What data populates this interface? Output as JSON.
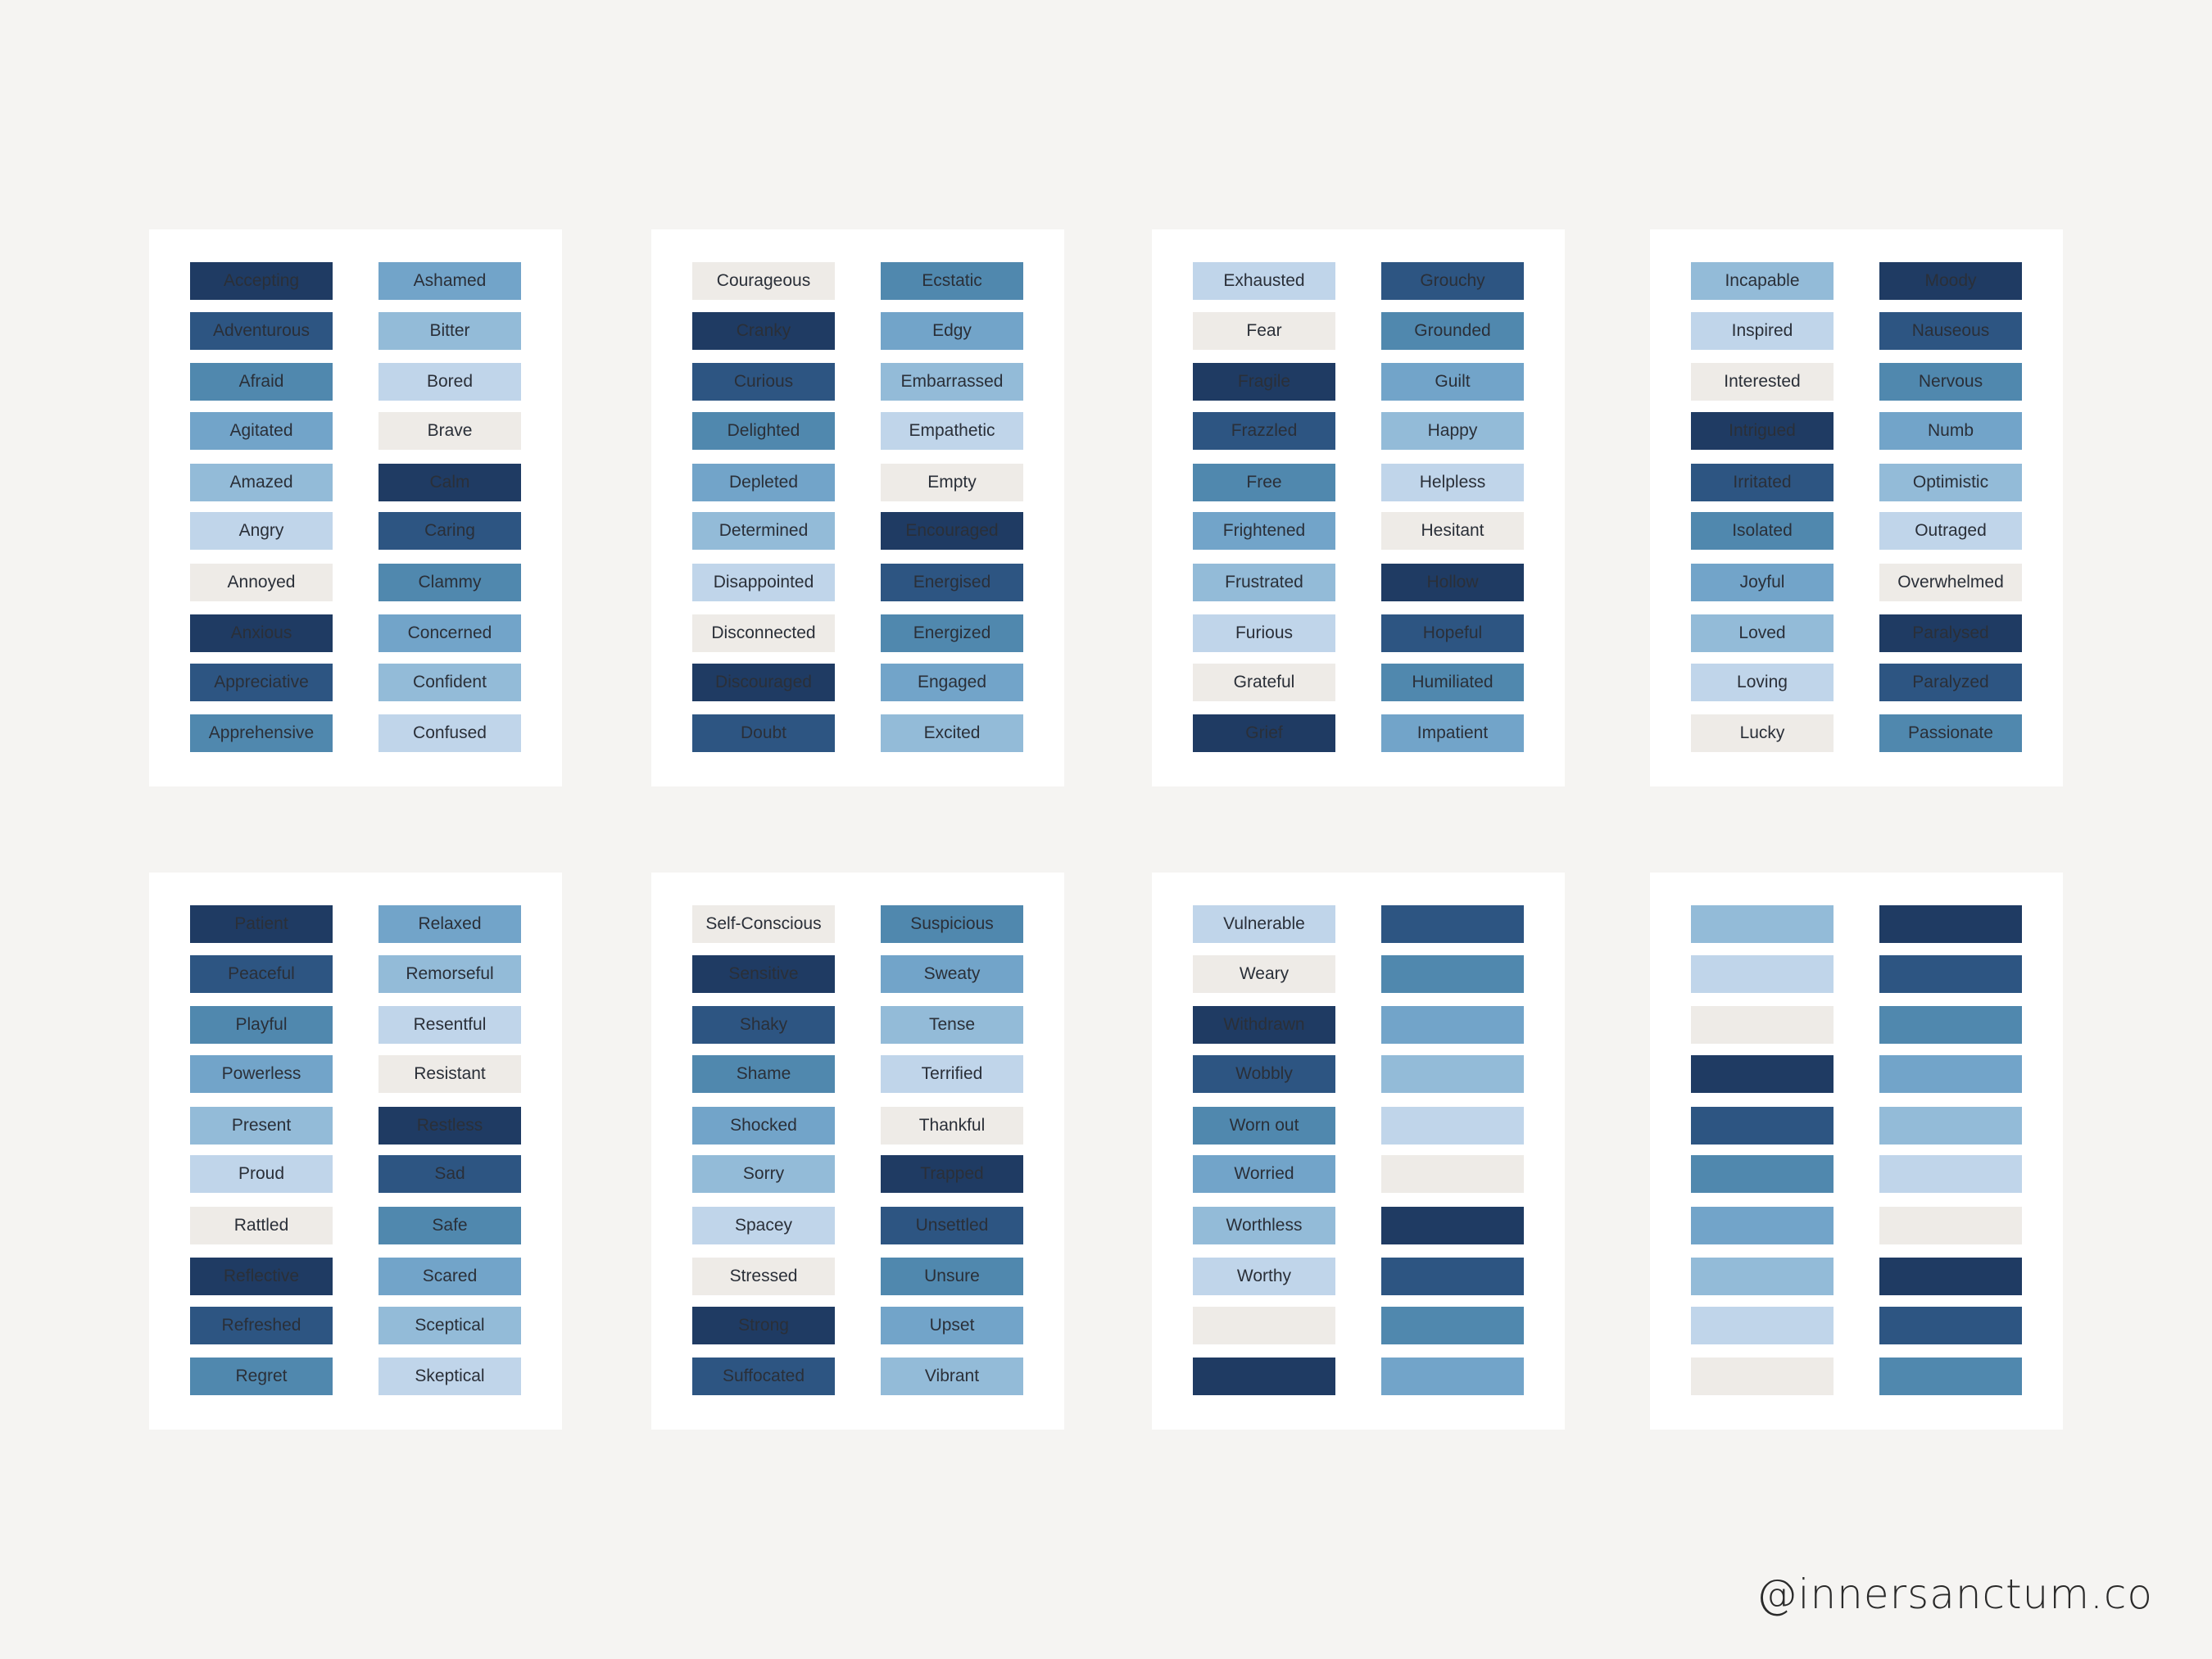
{
  "colors": {
    "c1": "#1f3b63",
    "c2": "#2d5582",
    "c3": "#5088ae",
    "c4": "#72a4c9",
    "c5": "#93bbd8",
    "c6": "#c0d5ea",
    "c7": "#eeebe7"
  },
  "watermark": "@innersanctum.co",
  "cards": [
    {
      "left": [
        {
          "label": "Accepting",
          "color": "c1"
        },
        {
          "label": "Adventurous",
          "color": "c2"
        },
        {
          "label": "Afraid",
          "color": "c3"
        },
        {
          "label": "Agitated",
          "color": "c4"
        },
        {
          "label": "Amazed",
          "color": "c5"
        },
        {
          "label": "Angry",
          "color": "c6"
        },
        {
          "label": "Annoyed",
          "color": "c7"
        },
        {
          "label": "Anxious",
          "color": "c1"
        },
        {
          "label": "Appreciative",
          "color": "c2"
        },
        {
          "label": "Apprehensive",
          "color": "c3"
        }
      ],
      "right": [
        {
          "label": "Ashamed",
          "color": "c4"
        },
        {
          "label": "Bitter",
          "color": "c5"
        },
        {
          "label": "Bored",
          "color": "c6"
        },
        {
          "label": "Brave",
          "color": "c7"
        },
        {
          "label": "Calm",
          "color": "c1"
        },
        {
          "label": "Caring",
          "color": "c2"
        },
        {
          "label": "Clammy",
          "color": "c3"
        },
        {
          "label": "Concerned",
          "color": "c4"
        },
        {
          "label": "Confident",
          "color": "c5"
        },
        {
          "label": "Confused",
          "color": "c6"
        }
      ]
    },
    {
      "left": [
        {
          "label": "Courageous",
          "color": "c7"
        },
        {
          "label": "Cranky",
          "color": "c1"
        },
        {
          "label": "Curious",
          "color": "c2"
        },
        {
          "label": "Delighted",
          "color": "c3"
        },
        {
          "label": "Depleted",
          "color": "c4"
        },
        {
          "label": "Determined",
          "color": "c5"
        },
        {
          "label": "Disappointed",
          "color": "c6"
        },
        {
          "label": "Disconnected",
          "color": "c7"
        },
        {
          "label": "Discouraged",
          "color": "c1"
        },
        {
          "label": "Doubt",
          "color": "c2"
        }
      ],
      "right": [
        {
          "label": "Ecstatic",
          "color": "c3"
        },
        {
          "label": "Edgy",
          "color": "c4"
        },
        {
          "label": "Embarrassed",
          "color": "c5"
        },
        {
          "label": "Empathetic",
          "color": "c6"
        },
        {
          "label": "Empty",
          "color": "c7"
        },
        {
          "label": "Encouraged",
          "color": "c1"
        },
        {
          "label": "Energised",
          "color": "c2"
        },
        {
          "label": "Energized",
          "color": "c3"
        },
        {
          "label": "Engaged",
          "color": "c4"
        },
        {
          "label": "Excited",
          "color": "c5"
        }
      ]
    },
    {
      "left": [
        {
          "label": "Exhausted",
          "color": "c6"
        },
        {
          "label": "Fear",
          "color": "c7"
        },
        {
          "label": "Fragile",
          "color": "c1"
        },
        {
          "label": "Frazzled",
          "color": "c2"
        },
        {
          "label": "Free",
          "color": "c3"
        },
        {
          "label": "Frightened",
          "color": "c4"
        },
        {
          "label": "Frustrated",
          "color": "c5"
        },
        {
          "label": "Furious",
          "color": "c6"
        },
        {
          "label": "Grateful",
          "color": "c7"
        },
        {
          "label": "Grief",
          "color": "c1"
        }
      ],
      "right": [
        {
          "label": "Grouchy",
          "color": "c2"
        },
        {
          "label": "Grounded",
          "color": "c3"
        },
        {
          "label": "Guilt",
          "color": "c4"
        },
        {
          "label": "Happy",
          "color": "c5"
        },
        {
          "label": "Helpless",
          "color": "c6"
        },
        {
          "label": "Hesitant",
          "color": "c7"
        },
        {
          "label": "Hollow",
          "color": "c1"
        },
        {
          "label": "Hopeful",
          "color": "c2"
        },
        {
          "label": "Humiliated",
          "color": "c3"
        },
        {
          "label": "Impatient",
          "color": "c4"
        }
      ]
    },
    {
      "left": [
        {
          "label": "Incapable",
          "color": "c5"
        },
        {
          "label": "Inspired",
          "color": "c6"
        },
        {
          "label": "Interested",
          "color": "c7"
        },
        {
          "label": "Intrigued",
          "color": "c1"
        },
        {
          "label": "Irritated",
          "color": "c2"
        },
        {
          "label": "Isolated",
          "color": "c3"
        },
        {
          "label": "Joyful",
          "color": "c4"
        },
        {
          "label": "Loved",
          "color": "c5"
        },
        {
          "label": "Loving",
          "color": "c6"
        },
        {
          "label": "Lucky",
          "color": "c7"
        }
      ],
      "right": [
        {
          "label": "Moody",
          "color": "c1"
        },
        {
          "label": "Nauseous",
          "color": "c2"
        },
        {
          "label": "Nervous",
          "color": "c3"
        },
        {
          "label": "Numb",
          "color": "c4"
        },
        {
          "label": "Optimistic",
          "color": "c5"
        },
        {
          "label": "Outraged",
          "color": "c6"
        },
        {
          "label": "Overwhelmed",
          "color": "c7"
        },
        {
          "label": "Paralysed",
          "color": "c1"
        },
        {
          "label": "Paralyzed",
          "color": "c2"
        },
        {
          "label": "Passionate",
          "color": "c3"
        }
      ]
    },
    {
      "left": [
        {
          "label": "Patient",
          "color": "c1"
        },
        {
          "label": "Peaceful",
          "color": "c2"
        },
        {
          "label": "Playful",
          "color": "c3"
        },
        {
          "label": "Powerless",
          "color": "c4"
        },
        {
          "label": "Present",
          "color": "c5"
        },
        {
          "label": "Proud",
          "color": "c6"
        },
        {
          "label": "Rattled",
          "color": "c7"
        },
        {
          "label": "Reflective",
          "color": "c1"
        },
        {
          "label": "Refreshed",
          "color": "c2"
        },
        {
          "label": "Regret",
          "color": "c3"
        }
      ],
      "right": [
        {
          "label": "Relaxed",
          "color": "c4"
        },
        {
          "label": "Remorseful",
          "color": "c5"
        },
        {
          "label": "Resentful",
          "color": "c6"
        },
        {
          "label": "Resistant",
          "color": "c7"
        },
        {
          "label": "Restless",
          "color": "c1"
        },
        {
          "label": "Sad",
          "color": "c2"
        },
        {
          "label": "Safe",
          "color": "c3"
        },
        {
          "label": "Scared",
          "color": "c4"
        },
        {
          "label": "Sceptical",
          "color": "c5"
        },
        {
          "label": "Skeptical",
          "color": "c6"
        }
      ]
    },
    {
      "left": [
        {
          "label": "Self-Conscious",
          "color": "c7"
        },
        {
          "label": "Sensitive",
          "color": "c1"
        },
        {
          "label": "Shaky",
          "color": "c2"
        },
        {
          "label": "Shame",
          "color": "c3"
        },
        {
          "label": "Shocked",
          "color": "c4"
        },
        {
          "label": "Sorry",
          "color": "c5"
        },
        {
          "label": "Spacey",
          "color": "c6"
        },
        {
          "label": "Stressed",
          "color": "c7"
        },
        {
          "label": "Strong",
          "color": "c1"
        },
        {
          "label": "Suffocated",
          "color": "c2"
        }
      ],
      "right": [
        {
          "label": "Suspicious",
          "color": "c3"
        },
        {
          "label": "Sweaty",
          "color": "c4"
        },
        {
          "label": "Tense",
          "color": "c5"
        },
        {
          "label": "Terrified",
          "color": "c6"
        },
        {
          "label": "Thankful",
          "color": "c7"
        },
        {
          "label": "Trapped",
          "color": "c1"
        },
        {
          "label": "Unsettled",
          "color": "c2"
        },
        {
          "label": "Unsure",
          "color": "c3"
        },
        {
          "label": "Upset",
          "color": "c4"
        },
        {
          "label": "Vibrant",
          "color": "c5"
        }
      ]
    },
    {
      "left": [
        {
          "label": "Vulnerable",
          "color": "c6"
        },
        {
          "label": "Weary",
          "color": "c7"
        },
        {
          "label": "Withdrawn",
          "color": "c1"
        },
        {
          "label": "Wobbly",
          "color": "c2"
        },
        {
          "label": "Worn out",
          "color": "c3"
        },
        {
          "label": "Worried",
          "color": "c4"
        },
        {
          "label": "Worthless",
          "color": "c5"
        },
        {
          "label": "Worthy",
          "color": "c6"
        },
        {
          "label": "",
          "color": "c7"
        },
        {
          "label": "",
          "color": "c1"
        }
      ],
      "right": [
        {
          "label": "",
          "color": "c2"
        },
        {
          "label": "",
          "color": "c3"
        },
        {
          "label": "",
          "color": "c4"
        },
        {
          "label": "",
          "color": "c5"
        },
        {
          "label": "",
          "color": "c6"
        },
        {
          "label": "",
          "color": "c7"
        },
        {
          "label": "",
          "color": "c1"
        },
        {
          "label": "",
          "color": "c2"
        },
        {
          "label": "",
          "color": "c3"
        },
        {
          "label": "",
          "color": "c4"
        }
      ]
    },
    {
      "left": [
        {
          "label": "",
          "color": "c5"
        },
        {
          "label": "",
          "color": "c6"
        },
        {
          "label": "",
          "color": "c7"
        },
        {
          "label": "",
          "color": "c1"
        },
        {
          "label": "",
          "color": "c2"
        },
        {
          "label": "",
          "color": "c3"
        },
        {
          "label": "",
          "color": "c4"
        },
        {
          "label": "",
          "color": "c5"
        },
        {
          "label": "",
          "color": "c6"
        },
        {
          "label": "",
          "color": "c7"
        }
      ],
      "right": [
        {
          "label": "",
          "color": "c1"
        },
        {
          "label": "",
          "color": "c2"
        },
        {
          "label": "",
          "color": "c3"
        },
        {
          "label": "",
          "color": "c4"
        },
        {
          "label": "",
          "color": "c5"
        },
        {
          "label": "",
          "color": "c6"
        },
        {
          "label": "",
          "color": "c7"
        },
        {
          "label": "",
          "color": "c1"
        },
        {
          "label": "",
          "color": "c2"
        },
        {
          "label": "",
          "color": "c3"
        }
      ]
    }
  ]
}
